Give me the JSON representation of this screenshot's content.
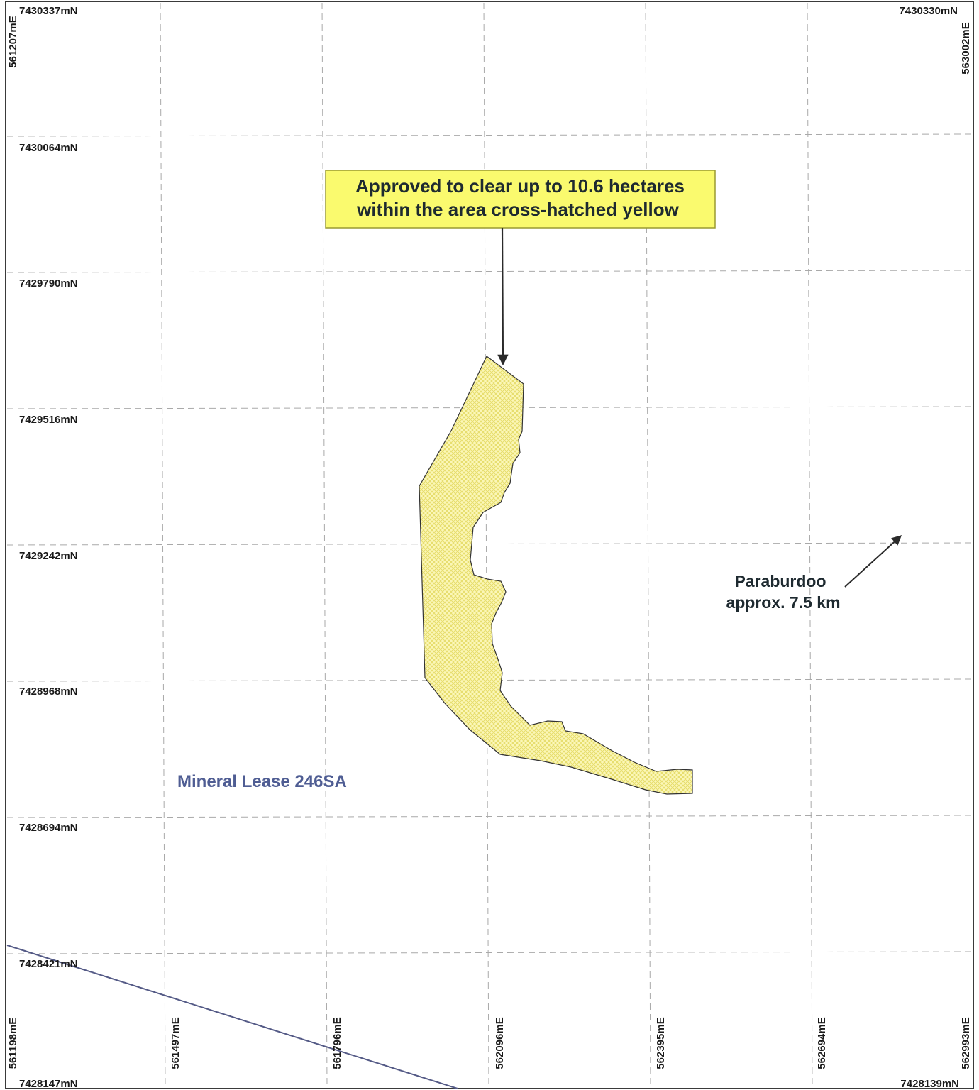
{
  "map": {
    "northing_labels": {
      "top_left": "7430337mN",
      "top_right": "7430330mN",
      "rows": [
        "7430064mN",
        "7429790mN",
        "7429516mN",
        "7429242mN",
        "7428968mN",
        "7428694mN",
        "7428421mN"
      ],
      "bottom_left": "7428147mN",
      "bottom_right": "7428139mN"
    },
    "easting_labels": {
      "top_left": "561207mE",
      "top_right": "563002mE",
      "bottom": [
        "561198mE",
        "561497mE",
        "561796mE",
        "562096mE",
        "562395mE",
        "562694mE",
        "562993mE"
      ]
    },
    "callout": {
      "line1": "Approved to clear up to 10.6 hectares",
      "line2": "within the area cross-hatched yellow"
    },
    "town": {
      "name": "Paraburdoo",
      "distance": "approx. 7.5 km"
    },
    "lease_label": "Mineral Lease 246SA",
    "colors": {
      "clearing_fill": "#fbf7b8",
      "clearing_hatch": "#e6dc6a",
      "callout_fill": "#fafa6e",
      "callout_border": "#9a9a30",
      "lease_text": "#4f5d93",
      "lease_boundary": "#545a86",
      "grid": "#a9a9a9",
      "frame": "#3a3a3a",
      "arrow": "#2a2a2a"
    }
  }
}
